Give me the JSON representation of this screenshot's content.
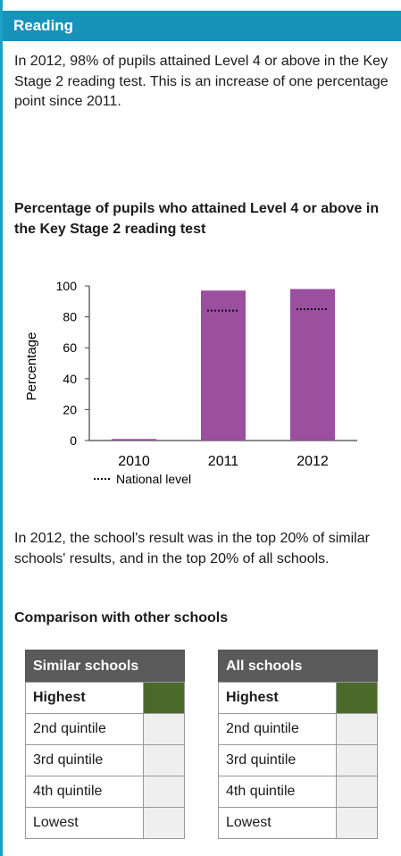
{
  "header": {
    "title": "Reading"
  },
  "intro": "In 2012, 98% of pupils attained Level 4 or above in the Key Stage 2 reading test. This is an increase of one percentage point since 2011.",
  "chart_data": {
    "type": "bar",
    "title": "Percentage of pupils who attained Level 4 or above in the Key Stage 2 reading test",
    "ylabel": "Percentage",
    "xlabel": "",
    "categories": [
      "2010",
      "2011",
      "2012"
    ],
    "values": [
      1,
      97,
      98
    ],
    "national_level": [
      null,
      84,
      85
    ],
    "national_label": "National level",
    "yticks": [
      "0",
      "20",
      "40",
      "60",
      "80",
      "100"
    ],
    "ylim": [
      0,
      100
    ],
    "bar_color": "#9a4f9f",
    "grid": false,
    "legend": "bottom-left"
  },
  "result_text": "In 2012, the school's result was in the top 20% of similar schools' results, and in the top 20% of all schools.",
  "comparison": {
    "title": "Comparison with other schools",
    "tables": [
      {
        "header": "Similar schools",
        "rows": [
          {
            "label": "Highest",
            "selected": true
          },
          {
            "label": "2nd quintile",
            "selected": false
          },
          {
            "label": "3rd quintile",
            "selected": false
          },
          {
            "label": "4th quintile",
            "selected": false
          },
          {
            "label": "Lowest",
            "selected": false
          }
        ]
      },
      {
        "header": "All schools",
        "rows": [
          {
            "label": "Highest",
            "selected": true
          },
          {
            "label": "2nd quintile",
            "selected": false
          },
          {
            "label": "3rd quintile",
            "selected": false
          },
          {
            "label": "4th quintile",
            "selected": false
          },
          {
            "label": "Lowest",
            "selected": false
          }
        ]
      }
    ],
    "selected_color": "#4a6a2a"
  }
}
